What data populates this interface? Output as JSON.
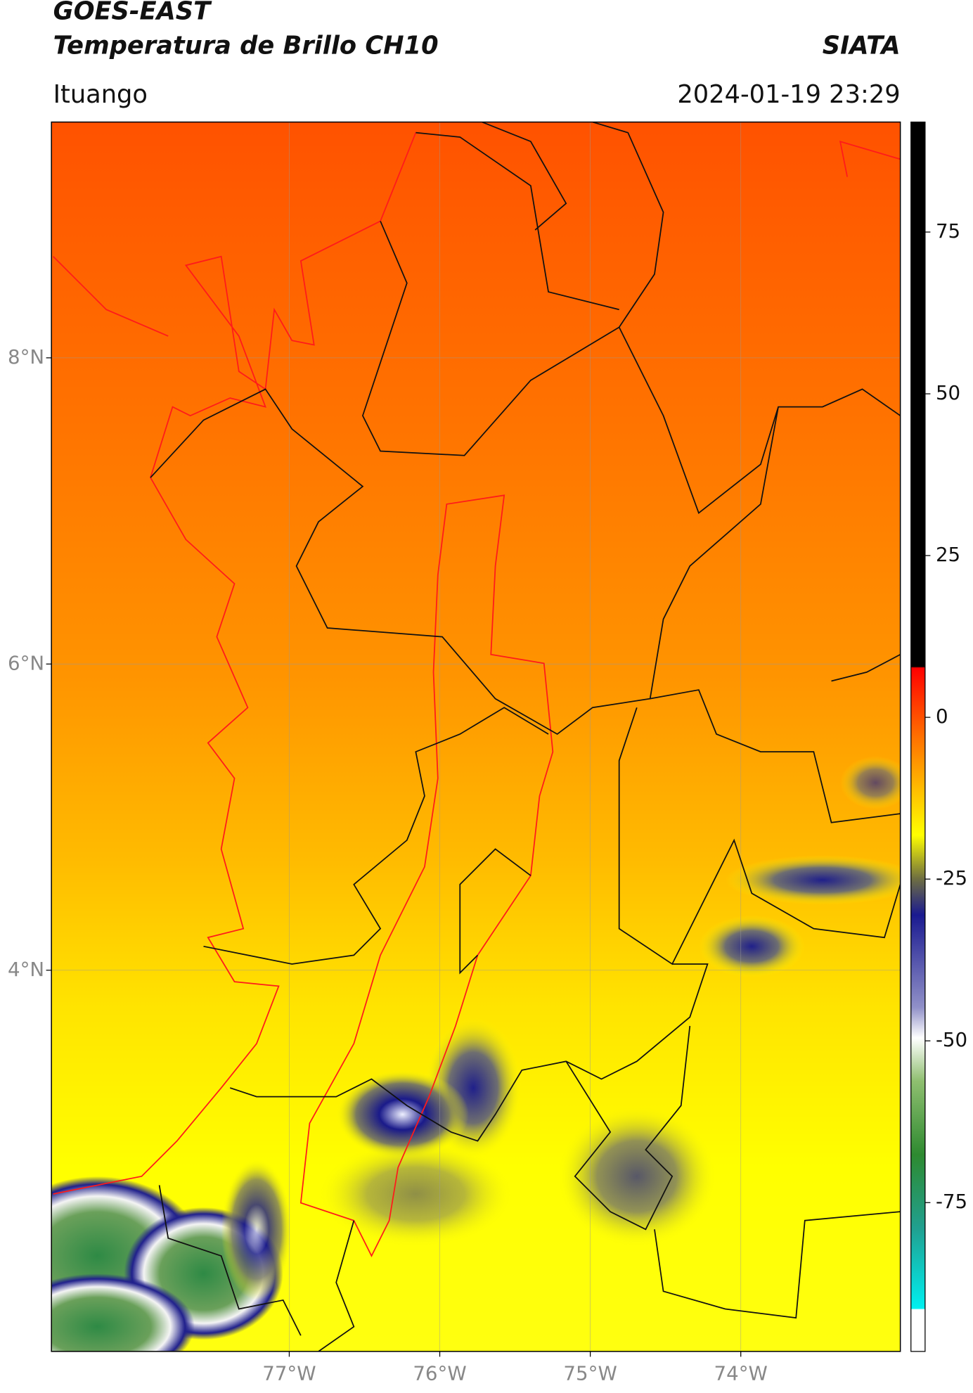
{
  "header": {
    "title": "GOES-EAST",
    "subtitle": "Temperatura de Brillo CH10",
    "source": "SIATA",
    "place": "Ituango",
    "datetime": "2024-01-19 23:29"
  },
  "map": {
    "lon_range": [
      -78.58,
      -72.94
    ],
    "lat_range": [
      1.51,
      9.54
    ],
    "lon_ticks": [
      {
        "value": -77,
        "label": "77°W"
      },
      {
        "value": -76,
        "label": "76°W"
      },
      {
        "value": -75,
        "label": "75°W"
      },
      {
        "value": -74,
        "label": "74°W"
      }
    ],
    "lat_ticks": [
      {
        "value": 8,
        "label": "8°N"
      },
      {
        "value": 6,
        "label": "6°N"
      },
      {
        "value": 4,
        "label": "4°N"
      }
    ],
    "grid": true
  },
  "colorbar": {
    "range": [
      -98,
      92
    ],
    "ticks": [
      75,
      50,
      25,
      0,
      -25,
      -50,
      -75
    ]
  }
}
